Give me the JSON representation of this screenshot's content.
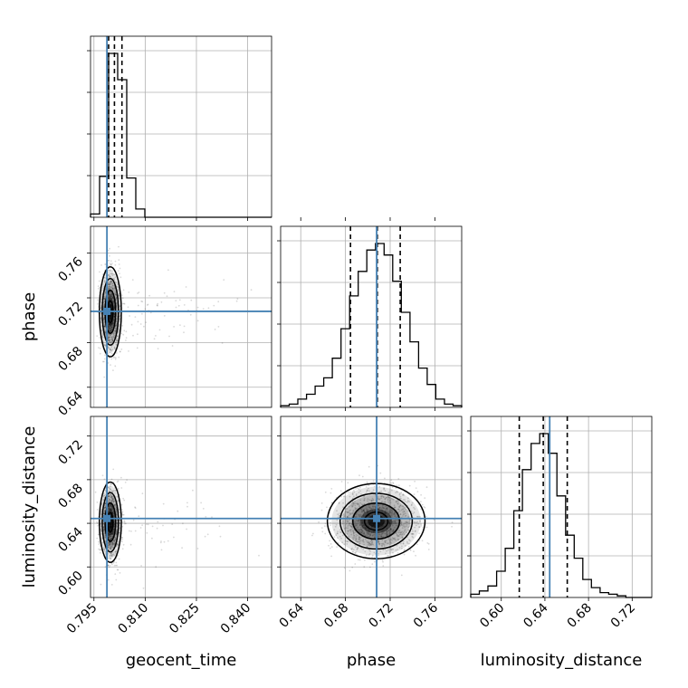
{
  "chart_data": {
    "type": "corner",
    "parameters": [
      "geocent_time",
      "phase",
      "luminosity_distance"
    ],
    "truths": {
      "geocent_time": 0.7988,
      "phase": 0.7079,
      "luminosity_distance": 0.6444
    },
    "ranges": {
      "geocent_time": [
        0.794,
        0.847
      ],
      "phase": [
        0.622,
        0.784
      ],
      "luminosity_distance": [
        0.572,
        0.738
      ]
    },
    "ticks": {
      "geocent_time": [
        "0.795",
        "0.810",
        "0.825",
        "0.840"
      ],
      "phase": [
        "0.64",
        "0.68",
        "0.72",
        "0.76"
      ],
      "luminosity_distance": [
        "0.60",
        "0.64",
        "0.68",
        "0.72"
      ]
    },
    "quantiles": {
      "geocent_time": [
        0.7993,
        0.801,
        0.8032
      ],
      "phase": [
        0.6845,
        0.7085,
        0.729
      ],
      "luminosity_distance": [
        0.6165,
        0.6385,
        0.6605
      ]
    },
    "histograms": {
      "geocent_time": [
        0.02,
        0.25,
        1.0,
        0.84,
        0.24,
        0.05,
        0,
        0,
        0,
        0,
        0,
        0,
        0,
        0,
        0,
        0,
        0,
        0,
        0,
        0
      ],
      "phase": [
        0.01,
        0.02,
        0.05,
        0.08,
        0.13,
        0.18,
        0.3,
        0.48,
        0.68,
        0.83,
        0.96,
        1.0,
        0.93,
        0.77,
        0.58,
        0.4,
        0.24,
        0.14,
        0.05,
        0.02,
        0.01
      ],
      "luminosity_distance": [
        0.02,
        0.04,
        0.07,
        0.16,
        0.3,
        0.53,
        0.78,
        0.94,
        1.0,
        0.88,
        0.62,
        0.38,
        0.24,
        0.11,
        0.06,
        0.03,
        0.02,
        0.01,
        0,
        0,
        0
      ]
    },
    "density_centers": {
      "phase_vs_geocent_time": {
        "x": 0.7998,
        "y": 0.7075
      },
      "luminosity_distance_vs_geocent_time": {
        "x": 0.7998,
        "y": 0.641
      },
      "luminosity_distance_vs_phase": {
        "x": 0.7075,
        "y": 0.642
      }
    },
    "grid": true
  }
}
